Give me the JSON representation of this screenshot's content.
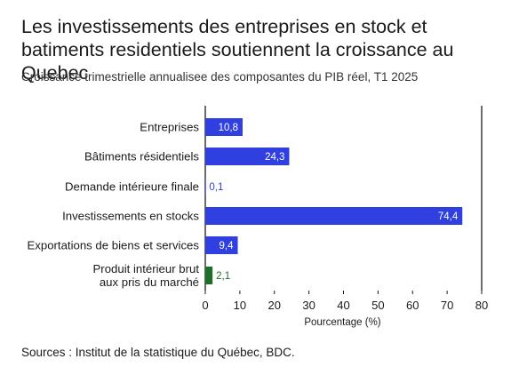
{
  "chart_data": {
    "type": "bar",
    "orientation": "horizontal",
    "title": "Les investissements des entreprises en stock et batiments residentiels soutiennent la croissance au Quebec",
    "subtitle": "Croissance trimestrielle annualisee des composantes du PIB réel, T1 2025",
    "xlabel": "Pourcentage (%)",
    "ylabel": "",
    "xlim": [
      0,
      80
    ],
    "xticks": [
      0,
      10,
      20,
      30,
      40,
      50,
      60,
      70,
      80
    ],
    "grid": false,
    "categories": [
      "Entreprises",
      "Bâtiments résidentiels",
      "Demande intérieure finale",
      "Investissements en stocks",
      "Exportations de biens et services",
      "Produit intérieur brut aux pris du marché"
    ],
    "category_lines": [
      [
        "Entreprises"
      ],
      [
        "Bâtiments résidentiels"
      ],
      [
        "Demande intérieure finale"
      ],
      [
        "Investissements en stocks"
      ],
      [
        "Exportations de biens et services"
      ],
      [
        "Produit intérieur brut",
        "aux pris du marché"
      ]
    ],
    "values": [
      10.8,
      24.3,
      0.1,
      74.4,
      9.4,
      2.1
    ],
    "value_labels": [
      "10,8",
      "24,3",
      "0,1",
      "74,4",
      "9,4",
      "2,1"
    ],
    "colors": [
      "#2f3fe0",
      "#2f3fe0",
      "#2f3fe0",
      "#2f3fe0",
      "#2f3fe0",
      "#1f6e2c"
    ]
  },
  "source": "Sources : Institut de la statistique du Québec, BDC."
}
